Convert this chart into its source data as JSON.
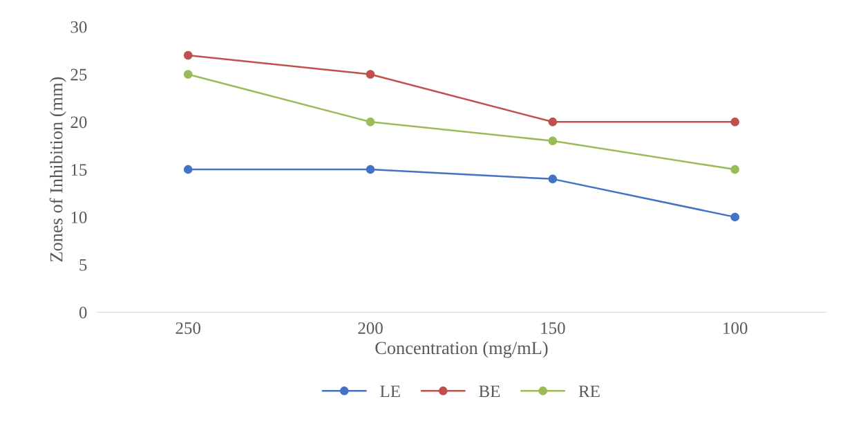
{
  "chart_data": {
    "type": "line",
    "xlabel": "Concentration (mg/mL)",
    "ylabel": "Zones of Inhibition (mm)",
    "categories": [
      "250",
      "200",
      "150",
      "100"
    ],
    "series": [
      {
        "name": "LE",
        "color": "#4472c4",
        "values": [
          15,
          15,
          14,
          10
        ]
      },
      {
        "name": "BE",
        "color": "#c0504d",
        "values": [
          27,
          25,
          20,
          20
        ]
      },
      {
        "name": "RE",
        "color": "#9bbb59",
        "values": [
          25,
          20,
          18,
          15
        ]
      }
    ],
    "ylim": [
      0,
      30
    ],
    "yticks": [
      0,
      5,
      10,
      15,
      20,
      25,
      30
    ],
    "grid": false,
    "legend": "bottom",
    "marker": "circle",
    "line_style": "solid"
  }
}
